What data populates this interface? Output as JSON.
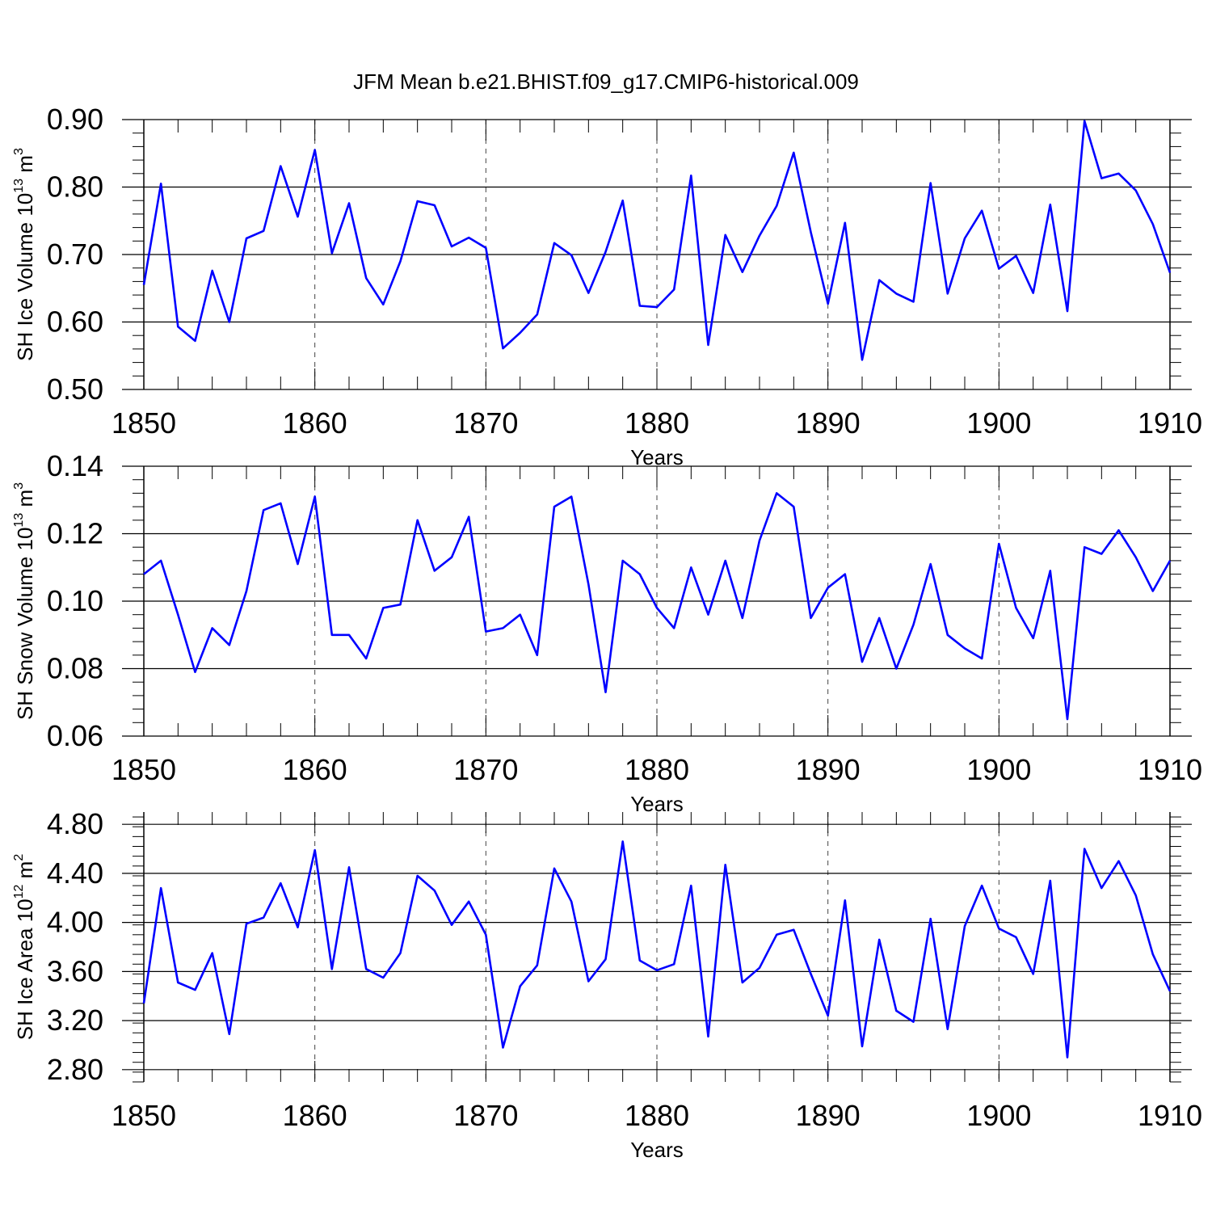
{
  "title": "JFM Mean b.e21.BHIST.f09_g17.CMIP6-historical.009",
  "line_color": "#0000ff",
  "chart_data": [
    {
      "type": "line",
      "ylabel": {
        "main": "SH Ice Volume 10",
        "exp": "13",
        "unit": " m",
        "unit_exp": "3"
      },
      "xlabel": "Years",
      "xlim": [
        1850,
        1910
      ],
      "ylim": [
        0.5,
        0.9
      ],
      "x_ticks": [
        "1850",
        "1860",
        "1870",
        "1880",
        "1890",
        "1900",
        "1910"
      ],
      "y_ticks": [
        "0.50",
        "0.60",
        "0.70",
        "0.80",
        "0.90"
      ],
      "y_tick_values": [
        0.5,
        0.6,
        0.7,
        0.8,
        0.9
      ],
      "y_minor_step": 0.02,
      "x": [
        1850,
        1851,
        1852,
        1853,
        1854,
        1855,
        1856,
        1857,
        1858,
        1859,
        1860,
        1861,
        1862,
        1863,
        1864,
        1865,
        1866,
        1867,
        1868,
        1869,
        1870,
        1871,
        1872,
        1873,
        1874,
        1875,
        1876,
        1877,
        1878,
        1879,
        1880,
        1881,
        1882,
        1883,
        1884,
        1885,
        1886,
        1887,
        1888,
        1889,
        1890,
        1891,
        1892,
        1893,
        1894,
        1895,
        1896,
        1897,
        1898,
        1899,
        1900,
        1901,
        1902,
        1903,
        1904,
        1905,
        1906,
        1907,
        1908,
        1909,
        1910
      ],
      "values": [
        0.655,
        0.805,
        0.593,
        0.572,
        0.676,
        0.6,
        0.724,
        0.735,
        0.831,
        0.756,
        0.855,
        0.702,
        0.776,
        0.665,
        0.626,
        0.69,
        0.779,
        0.773,
        0.712,
        0.725,
        0.71,
        0.561,
        0.584,
        0.611,
        0.717,
        0.699,
        0.643,
        0.704,
        0.78,
        0.624,
        0.622,
        0.648,
        0.817,
        0.566,
        0.729,
        0.674,
        0.728,
        0.772,
        0.851,
        0.733,
        0.627,
        0.747,
        0.544,
        0.662,
        0.642,
        0.63,
        0.806,
        0.642,
        0.724,
        0.765,
        0.679,
        0.698,
        0.643,
        0.774,
        0.616,
        0.898,
        0.813,
        0.82,
        0.795,
        0.745,
        0.673
      ]
    },
    {
      "type": "line",
      "ylabel": {
        "main": "SH Snow Volume 10",
        "exp": "13",
        "unit": " m",
        "unit_exp": "3"
      },
      "xlabel": "Years",
      "xlim": [
        1850,
        1910
      ],
      "ylim": [
        0.06,
        0.14
      ],
      "x_ticks": [
        "1850",
        "1860",
        "1870",
        "1880",
        "1890",
        "1900",
        "1910"
      ],
      "y_ticks": [
        "0.06",
        "0.08",
        "0.10",
        "0.12",
        "0.14"
      ],
      "y_tick_values": [
        0.06,
        0.08,
        0.1,
        0.12,
        0.14
      ],
      "y_minor_step": 0.004,
      "x": [
        1850,
        1851,
        1852,
        1853,
        1854,
        1855,
        1856,
        1857,
        1858,
        1859,
        1860,
        1861,
        1862,
        1863,
        1864,
        1865,
        1866,
        1867,
        1868,
        1869,
        1870,
        1871,
        1872,
        1873,
        1874,
        1875,
        1876,
        1877,
        1878,
        1879,
        1880,
        1881,
        1882,
        1883,
        1884,
        1885,
        1886,
        1887,
        1888,
        1889,
        1890,
        1891,
        1892,
        1893,
        1894,
        1895,
        1896,
        1897,
        1898,
        1899,
        1900,
        1901,
        1902,
        1903,
        1904,
        1905,
        1906,
        1907,
        1908,
        1909,
        1910
      ],
      "values": [
        0.108,
        0.112,
        0.096,
        0.079,
        0.092,
        0.087,
        0.103,
        0.127,
        0.129,
        0.111,
        0.131,
        0.09,
        0.09,
        0.083,
        0.098,
        0.099,
        0.124,
        0.109,
        0.113,
        0.125,
        0.091,
        0.092,
        0.096,
        0.084,
        0.128,
        0.131,
        0.105,
        0.073,
        0.112,
        0.108,
        0.098,
        0.092,
        0.11,
        0.096,
        0.112,
        0.095,
        0.118,
        0.132,
        0.128,
        0.095,
        0.104,
        0.108,
        0.082,
        0.095,
        0.08,
        0.093,
        0.111,
        0.09,
        0.086,
        0.083,
        0.117,
        0.098,
        0.089,
        0.109,
        0.065,
        0.116,
        0.114,
        0.121,
        0.113,
        0.103,
        0.112
      ]
    },
    {
      "type": "line",
      "ylabel": {
        "main": "SH Ice Area 10",
        "exp": "12",
        "unit": " m",
        "unit_exp": "2"
      },
      "xlabel": "Years",
      "xlim": [
        1850,
        1910
      ],
      "ylim": [
        2.7,
        4.9
      ],
      "x_ticks": [
        "1850",
        "1860",
        "1870",
        "1880",
        "1890",
        "1900",
        "1910"
      ],
      "y_ticks": [
        "2.80",
        "3.20",
        "3.60",
        "4.00",
        "4.40",
        "4.80"
      ],
      "y_tick_values": [
        2.8,
        3.2,
        3.6,
        4.0,
        4.4,
        4.8
      ],
      "y_minor_step": 0.08,
      "x": [
        1850,
        1851,
        1852,
        1853,
        1854,
        1855,
        1856,
        1857,
        1858,
        1859,
        1860,
        1861,
        1862,
        1863,
        1864,
        1865,
        1866,
        1867,
        1868,
        1869,
        1870,
        1871,
        1872,
        1873,
        1874,
        1875,
        1876,
        1877,
        1878,
        1879,
        1880,
        1881,
        1882,
        1883,
        1884,
        1885,
        1886,
        1887,
        1888,
        1889,
        1890,
        1891,
        1892,
        1893,
        1894,
        1895,
        1896,
        1897,
        1898,
        1899,
        1900,
        1901,
        1902,
        1903,
        1904,
        1905,
        1906,
        1907,
        1908,
        1909,
        1910
      ],
      "values": [
        3.34,
        4.28,
        3.51,
        3.45,
        3.75,
        3.09,
        3.99,
        4.04,
        4.32,
        3.96,
        4.59,
        3.62,
        4.45,
        3.62,
        3.55,
        3.75,
        4.38,
        4.26,
        3.98,
        4.17,
        3.9,
        2.98,
        3.48,
        3.65,
        4.44,
        4.17,
        3.52,
        3.7,
        4.66,
        3.69,
        3.61,
        3.66,
        4.3,
        3.07,
        4.47,
        3.51,
        3.63,
        3.9,
        3.94,
        3.58,
        3.24,
        4.18,
        2.99,
        3.86,
        3.28,
        3.19,
        4.03,
        3.13,
        3.97,
        4.3,
        3.95,
        3.88,
        3.58,
        4.34,
        2.9,
        4.6,
        4.28,
        4.5,
        4.22,
        3.74,
        3.44
      ]
    }
  ]
}
